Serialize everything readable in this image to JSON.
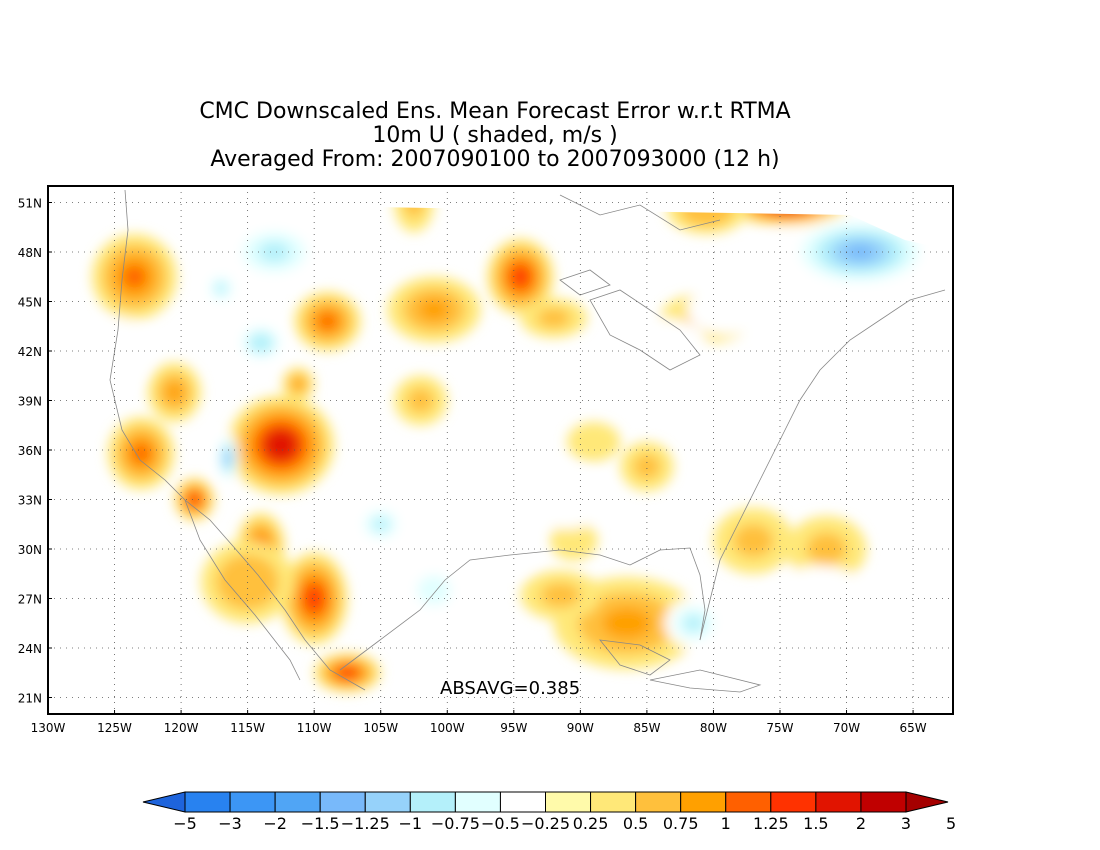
{
  "title": {
    "line1": "CMC Downscaled Ens. Mean Forecast Error w.r.t RTMA",
    "line2": "10m U ( shaded, m/s )",
    "line3": "Averaged From: 2007090100 to 2007093000 (12 h)"
  },
  "stat": "ABSAVG=0.385",
  "map": {
    "lon_range": [
      -130,
      -62
    ],
    "lat_range": [
      20,
      52
    ],
    "lon_ticks": [
      "130W",
      "125W",
      "120W",
      "115W",
      "110W",
      "105W",
      "100W",
      "95W",
      "90W",
      "85W",
      "80W",
      "75W",
      "70W",
      "65W"
    ],
    "lat_ticks": [
      "21N",
      "24N",
      "27N",
      "30N",
      "33N",
      "36N",
      "39N",
      "42N",
      "45N",
      "48N",
      "51N"
    ],
    "grid": "dotted"
  },
  "colorbar": {
    "labels": [
      "-5",
      "-3",
      "-2",
      "-1.5",
      "-1.25",
      "-1",
      "-0.75",
      "-0.5",
      "-0.25",
      "0.25",
      "0.5",
      "0.75",
      "1",
      "1.25",
      "1.5",
      "2",
      "3",
      "5"
    ],
    "colors": [
      "#1e64dc",
      "#2882f0",
      "#3c96f5",
      "#50a5f5",
      "#78b9fa",
      "#96d2fa",
      "#b4f0fa",
      "#e1ffff",
      "#ffffff",
      "#fffaaa",
      "#ffe878",
      "#ffc03c",
      "#ffa000",
      "#ff6000",
      "#ff3200",
      "#e11400",
      "#c00000",
      "#a50000"
    ]
  },
  "blobs": [
    {
      "lon": -123.5,
      "lat": 46.5,
      "rx": 3.2,
      "ry": 2.6,
      "v": 1.1
    },
    {
      "lon": -123.0,
      "lat": 35.8,
      "rx": 2.5,
      "ry": 2.2,
      "v": 1.2
    },
    {
      "lon": -120.5,
      "lat": 39.5,
      "rx": 2.0,
      "ry": 1.8,
      "v": 0.9
    },
    {
      "lon": -119.0,
      "lat": 33.0,
      "rx": 1.5,
      "ry": 1.3,
      "v": 1.3
    },
    {
      "lon": -112.5,
      "lat": 36.3,
      "rx": 4.0,
      "ry": 3.0,
      "v": 1.6
    },
    {
      "lon": -114.0,
      "lat": 30.2,
      "rx": 1.8,
      "ry": 2.0,
      "v": 1.2
    },
    {
      "lon": -110.0,
      "lat": 27.0,
      "rx": 2.5,
      "ry": 2.8,
      "v": 1.4
    },
    {
      "lon": -107.5,
      "lat": 22.5,
      "rx": 2.5,
      "ry": 1.2,
      "v": 1.4
    },
    {
      "lon": -115.0,
      "lat": 28.0,
      "rx": 3.5,
      "ry": 2.5,
      "v": 0.7
    },
    {
      "lon": -109.0,
      "lat": 43.8,
      "rx": 2.5,
      "ry": 1.8,
      "v": 1.0
    },
    {
      "lon": -111.2,
      "lat": 40.0,
      "rx": 1.2,
      "ry": 1.0,
      "v": 0.9
    },
    {
      "lon": -101.0,
      "lat": 44.5,
      "rx": 3.5,
      "ry": 2.0,
      "v": 0.9
    },
    {
      "lon": -94.5,
      "lat": 46.5,
      "rx": 2.5,
      "ry": 2.3,
      "v": 1.3
    },
    {
      "lon": -92.0,
      "lat": 44.0,
      "rx": 2.5,
      "ry": 1.2,
      "v": 0.6
    },
    {
      "lon": -80.5,
      "lat": 44.0,
      "rx": 3.5,
      "ry": 1.5,
      "v": 0.6
    },
    {
      "lon": -74.5,
      "lat": 50.8,
      "rx": 4.5,
      "ry": 1.2,
      "v": 1.6
    },
    {
      "lon": -80.5,
      "lat": 50.5,
      "rx": 3.0,
      "ry": 1.4,
      "v": 0.7
    },
    {
      "lon": -86.5,
      "lat": 25.5,
      "rx": 5.5,
      "ry": 2.8,
      "v": 0.9
    },
    {
      "lon": -91.5,
      "lat": 27.2,
      "rx": 3.0,
      "ry": 1.5,
      "v": 0.6
    },
    {
      "lon": -77.0,
      "lat": 30.5,
      "rx": 3.0,
      "ry": 2.0,
      "v": 0.6
    },
    {
      "lon": -71.5,
      "lat": 30.0,
      "rx": 3.0,
      "ry": 2.0,
      "v": 0.5
    },
    {
      "lon": -102.5,
      "lat": 51.0,
      "rx": 1.5,
      "ry": 1.8,
      "v": 0.5
    },
    {
      "lon": -85.0,
      "lat": 35.0,
      "rx": 2.0,
      "ry": 1.5,
      "v": 0.5
    },
    {
      "lon": -102.0,
      "lat": 39.0,
      "rx": 2.0,
      "ry": 1.5,
      "v": 0.5
    },
    {
      "lon": -90.5,
      "lat": 30.5,
      "rx": 1.8,
      "ry": 1.2,
      "v": 0.4
    },
    {
      "lon": -89.0,
      "lat": 36.5,
      "rx": 2.0,
      "ry": 1.2,
      "v": 0.4
    },
    {
      "lon": -73.0,
      "lat": 47.5,
      "rx": 4.0,
      "ry": 2.0,
      "v": -0.5
    },
    {
      "lon": -69.0,
      "lat": 48.0,
      "rx": 5.5,
      "ry": 2.2,
      "v": -1.3
    },
    {
      "lon": -79.0,
      "lat": 44.5,
      "rx": 3.0,
      "ry": 1.5,
      "v": -0.5
    },
    {
      "lon": -113.0,
      "lat": 48.0,
      "rx": 3.5,
      "ry": 1.8,
      "v": -0.8
    },
    {
      "lon": -117.0,
      "lat": 45.8,
      "rx": 1.2,
      "ry": 1.0,
      "v": -0.8
    },
    {
      "lon": -114.0,
      "lat": 42.5,
      "rx": 1.8,
      "ry": 1.2,
      "v": -1.0
    },
    {
      "lon": -116.5,
      "lat": 35.5,
      "rx": 0.8,
      "ry": 1.5,
      "v": -1.3
    },
    {
      "lon": -105.0,
      "lat": 31.5,
      "rx": 1.8,
      "ry": 1.2,
      "v": -0.8
    },
    {
      "lon": -101.0,
      "lat": 27.5,
      "rx": 2.5,
      "ry": 1.8,
      "v": -0.6
    },
    {
      "lon": -81.5,
      "lat": 25.5,
      "rx": 2.2,
      "ry": 1.5,
      "v": -0.9
    },
    {
      "lon": -91.0,
      "lat": 33.0,
      "rx": 3.0,
      "ry": 1.8,
      "v": -0.4
    },
    {
      "lon": -95.0,
      "lat": 30.2,
      "rx": 2.0,
      "ry": 1.5,
      "v": -0.4
    },
    {
      "lon": -72.0,
      "lat": 26.5,
      "rx": 4.0,
      "ry": 2.5,
      "v": -0.4
    },
    {
      "lon": -124.5,
      "lat": 42.0,
      "rx": 2.0,
      "ry": 2.0,
      "v": -0.3
    },
    {
      "lon": -84.0,
      "lat": 42.5,
      "rx": 3.5,
      "ry": 1.5,
      "v": -0.3
    }
  ]
}
